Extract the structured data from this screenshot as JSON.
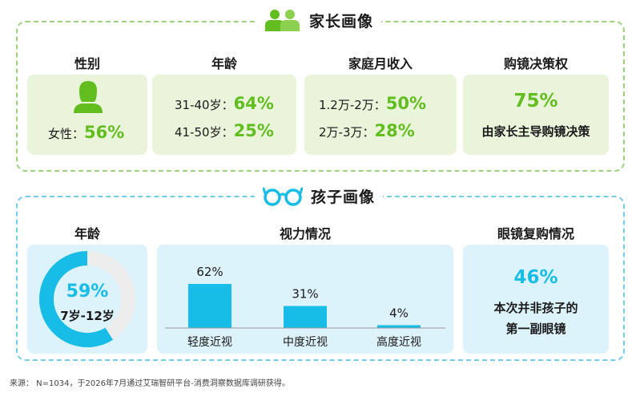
{
  "parent": {
    "title": "家长画像",
    "gender": {
      "title": "性别",
      "label": "女性：",
      "value": "56%"
    },
    "age": {
      "title": "年龄",
      "rows": [
        {
          "label": "31-40岁：",
          "value": "64%"
        },
        {
          "label": "41-50岁：",
          "value": "25%"
        }
      ]
    },
    "income": {
      "title": "家庭月收入",
      "rows": [
        {
          "label": "1.2万-2万：",
          "value": "50%"
        },
        {
          "label": "2万-3万：",
          "value": "28%"
        }
      ]
    },
    "decision": {
      "title": "购镜决策权",
      "value": "75%",
      "desc": "由家长主导购镜决策"
    }
  },
  "child": {
    "title": "孩子画像",
    "age": {
      "title": "年龄",
      "value": "59%",
      "range": "7岁-12岁"
    },
    "vision": {
      "title": "视力情况"
    },
    "repurchase": {
      "title": "眼镜复购情况",
      "value": "46%",
      "line1": "本次并非孩子的",
      "line2": "第一副眼镜"
    }
  },
  "chart_data": [
    {
      "type": "pie",
      "variant": "donut",
      "values": [
        59,
        41
      ],
      "center_label": [
        "59%",
        "7岁-12岁"
      ]
    },
    {
      "type": "bar",
      "title": "视力情况",
      "categories": [
        "轻度近视",
        "中度近视",
        "高度近视"
      ],
      "values": [
        62,
        31,
        4
      ],
      "data_labels": [
        "62%",
        "31%",
        "4%"
      ],
      "ylim": [
        0,
        100
      ],
      "grid": false
    }
  ],
  "source": "来源： N=1034，于2026年7月通过艾瑞智研平台-消费洞察数据库调研获得。",
  "colors": {
    "green": "#62bd1e",
    "blue": "#17bde7",
    "card_green": "#e9f4db",
    "card_blue": "#ddf3fb",
    "donut_rest": "#ededed"
  },
  "icons": [
    "parents-icon",
    "female-icon",
    "glasses-icon"
  ]
}
